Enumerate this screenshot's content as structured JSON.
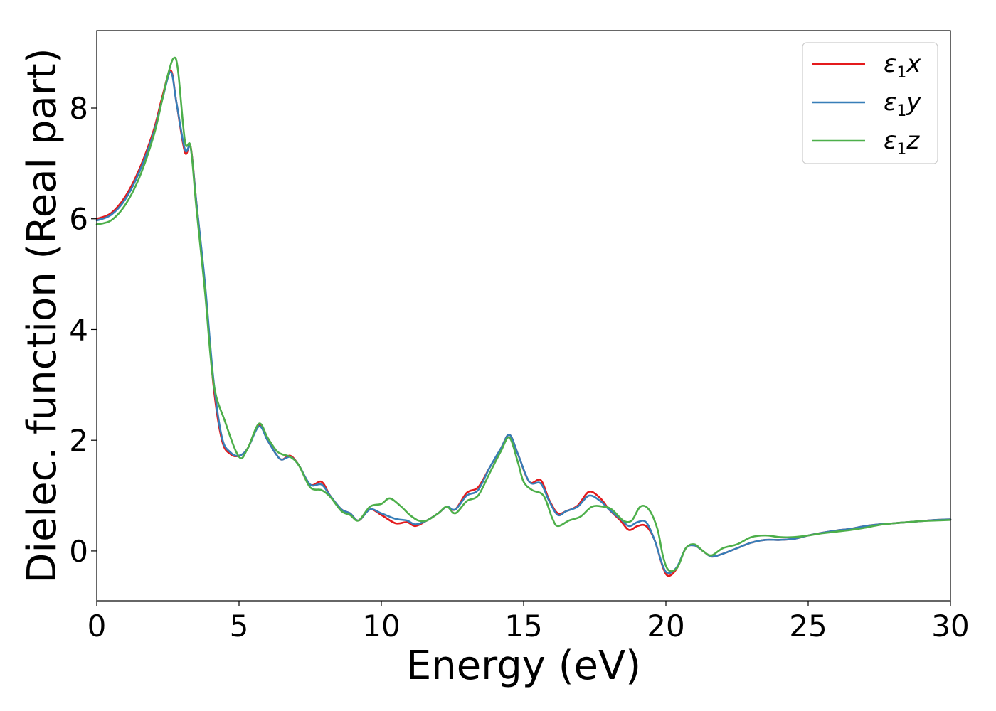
{
  "chart_data": {
    "type": "line",
    "xlabel": "Energy (eV)",
    "ylabel": "Dielec. function (Real part)",
    "xlim": [
      0,
      30
    ],
    "ylim": [
      -0.9,
      9.4
    ],
    "xticks": [
      0,
      5,
      10,
      15,
      20,
      25,
      30
    ],
    "xtick_labels": [
      "0",
      "5",
      "10",
      "15",
      "20",
      "25",
      "30"
    ],
    "yticks": [
      0,
      2,
      4,
      6,
      8
    ],
    "ytick_labels": [
      "0",
      "2",
      "4",
      "6",
      "8"
    ],
    "grid": false,
    "legend_position": "top-right",
    "series": [
      {
        "name": "ε1x",
        "symbol": "ε",
        "subscript": "1",
        "axis": "x",
        "color": "#e41a1c",
        "x": [
          0,
          0.5,
          1.0,
          1.5,
          2.0,
          2.3,
          2.6,
          2.8,
          3.1,
          3.3,
          3.5,
          3.8,
          4.1,
          4.4,
          4.7,
          5.0,
          5.3,
          5.7,
          6.0,
          6.3,
          6.5,
          6.8,
          7.1,
          7.5,
          7.9,
          8.2,
          8.6,
          8.9,
          9.2,
          9.6,
          10.0,
          10.5,
          10.9,
          11.2,
          11.6,
          12.0,
          12.3,
          12.6,
          13.0,
          13.4,
          13.8,
          14.2,
          14.5,
          14.8,
          15.2,
          15.6,
          15.9,
          16.2,
          16.5,
          16.9,
          17.3,
          17.7,
          18.0,
          18.4,
          18.7,
          19.0,
          19.3,
          19.6,
          19.9,
          20.1,
          20.4,
          20.7,
          21.0,
          21.3,
          21.6,
          22.0,
          22.5,
          23.0,
          23.5,
          24.0,
          24.5,
          25.0,
          25.5,
          26.0,
          26.5,
          27.0,
          27.5,
          28.0,
          28.5,
          29.0,
          29.5,
          30.0
        ],
        "y": [
          6.0,
          6.1,
          6.4,
          6.9,
          7.6,
          8.2,
          8.68,
          8.1,
          7.2,
          7.3,
          6.3,
          4.8,
          3.0,
          2.0,
          1.75,
          1.72,
          1.85,
          2.27,
          2.0,
          1.75,
          1.65,
          1.72,
          1.55,
          1.2,
          1.25,
          1.0,
          0.75,
          0.68,
          0.55,
          0.75,
          0.65,
          0.5,
          0.52,
          0.45,
          0.55,
          0.68,
          0.8,
          0.75,
          1.05,
          1.15,
          1.5,
          1.85,
          2.1,
          1.75,
          1.25,
          1.28,
          0.92,
          0.68,
          0.72,
          0.82,
          1.07,
          0.95,
          0.75,
          0.55,
          0.38,
          0.45,
          0.45,
          0.2,
          -0.3,
          -0.45,
          -0.3,
          0.05,
          0.1,
          0.0,
          -0.1,
          -0.05,
          0.05,
          0.15,
          0.2,
          0.2,
          0.22,
          0.28,
          0.33,
          0.37,
          0.4,
          0.45,
          0.48,
          0.5,
          0.52,
          0.54,
          0.56,
          0.57
        ]
      },
      {
        "name": "ε1y",
        "symbol": "ε",
        "subscript": "1",
        "axis": "y",
        "color": "#377eb8",
        "x": [
          0,
          0.5,
          1.0,
          1.5,
          2.0,
          2.3,
          2.6,
          2.8,
          3.1,
          3.3,
          3.5,
          3.8,
          4.1,
          4.4,
          4.7,
          5.0,
          5.3,
          5.7,
          6.0,
          6.3,
          6.5,
          6.8,
          7.1,
          7.5,
          7.9,
          8.2,
          8.6,
          8.9,
          9.2,
          9.6,
          10.0,
          10.5,
          10.9,
          11.2,
          11.6,
          12.0,
          12.3,
          12.6,
          13.0,
          13.4,
          13.8,
          14.2,
          14.5,
          14.8,
          15.2,
          15.6,
          15.9,
          16.2,
          16.5,
          16.9,
          17.3,
          17.7,
          18.0,
          18.4,
          18.7,
          19.0,
          19.3,
          19.6,
          19.9,
          20.1,
          20.4,
          20.7,
          21.0,
          21.3,
          21.6,
          22.0,
          22.5,
          23.0,
          23.5,
          24.0,
          24.5,
          25.0,
          25.5,
          26.0,
          26.5,
          27.0,
          27.5,
          28.0,
          28.5,
          29.0,
          29.5,
          30.0
        ],
        "y": [
          5.97,
          6.07,
          6.35,
          6.85,
          7.55,
          8.15,
          8.65,
          8.1,
          7.25,
          7.28,
          6.3,
          4.85,
          3.1,
          2.05,
          1.78,
          1.72,
          1.85,
          2.25,
          2.0,
          1.75,
          1.65,
          1.7,
          1.55,
          1.2,
          1.2,
          1.0,
          0.75,
          0.68,
          0.55,
          0.75,
          0.68,
          0.58,
          0.55,
          0.48,
          0.55,
          0.68,
          0.8,
          0.75,
          1.0,
          1.1,
          1.5,
          1.85,
          2.1,
          1.75,
          1.25,
          1.22,
          0.9,
          0.65,
          0.72,
          0.8,
          1.0,
          0.9,
          0.75,
          0.58,
          0.45,
          0.52,
          0.52,
          0.2,
          -0.28,
          -0.4,
          -0.28,
          0.05,
          0.1,
          0.0,
          -0.1,
          -0.05,
          0.05,
          0.15,
          0.2,
          0.2,
          0.22,
          0.28,
          0.33,
          0.37,
          0.4,
          0.45,
          0.48,
          0.5,
          0.52,
          0.54,
          0.56,
          0.57
        ]
      },
      {
        "name": "ε1z",
        "symbol": "ε",
        "subscript": "1",
        "axis": "z",
        "color": "#4daf4a",
        "x": [
          0,
          0.5,
          1.0,
          1.5,
          2.0,
          2.3,
          2.5,
          2.7,
          2.85,
          3.1,
          3.3,
          3.5,
          3.8,
          4.1,
          4.5,
          5.0,
          5.3,
          5.7,
          6.0,
          6.3,
          6.5,
          6.8,
          7.1,
          7.5,
          7.9,
          8.2,
          8.6,
          8.9,
          9.2,
          9.6,
          10.0,
          10.3,
          10.7,
          11.0,
          11.3,
          11.6,
          12.0,
          12.3,
          12.6,
          13.0,
          13.4,
          13.8,
          14.2,
          14.5,
          14.8,
          15.0,
          15.3,
          15.7,
          16.0,
          16.2,
          16.6,
          17.0,
          17.4,
          17.8,
          18.1,
          18.5,
          18.8,
          19.1,
          19.4,
          19.7,
          19.9,
          20.1,
          20.4,
          20.7,
          21.0,
          21.3,
          21.6,
          22.0,
          22.5,
          23.0,
          23.5,
          24.0,
          24.5,
          25.0,
          25.5,
          26.0,
          26.5,
          27.0,
          27.5,
          28.0,
          28.5,
          29.0,
          29.5,
          30.0
        ],
        "y": [
          5.9,
          5.97,
          6.25,
          6.75,
          7.5,
          8.15,
          8.6,
          8.9,
          8.7,
          7.4,
          7.3,
          6.2,
          4.7,
          3.05,
          2.35,
          1.7,
          1.85,
          2.3,
          2.05,
          1.82,
          1.75,
          1.7,
          1.55,
          1.15,
          1.1,
          0.98,
          0.72,
          0.65,
          0.55,
          0.8,
          0.85,
          0.95,
          0.8,
          0.65,
          0.55,
          0.55,
          0.68,
          0.8,
          0.68,
          0.9,
          1.0,
          1.4,
          1.8,
          2.05,
          1.6,
          1.25,
          1.1,
          1.0,
          0.6,
          0.45,
          0.55,
          0.62,
          0.8,
          0.8,
          0.75,
          0.55,
          0.55,
          0.8,
          0.75,
          0.4,
          -0.1,
          -0.35,
          -0.3,
          0.05,
          0.12,
          0.0,
          -0.08,
          0.05,
          0.12,
          0.25,
          0.28,
          0.25,
          0.25,
          0.28,
          0.32,
          0.35,
          0.38,
          0.42,
          0.47,
          0.5,
          0.52,
          0.54,
          0.55,
          0.56
        ]
      }
    ]
  }
}
